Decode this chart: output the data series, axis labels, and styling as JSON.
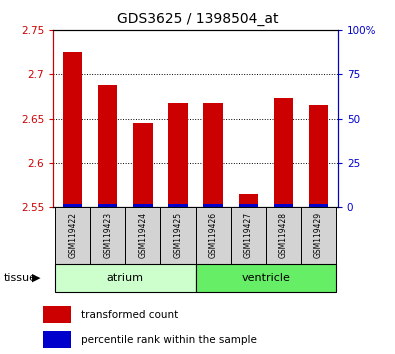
{
  "title": "GDS3625 / 1398504_at",
  "samples": [
    "GSM119422",
    "GSM119423",
    "GSM119424",
    "GSM119425",
    "GSM119426",
    "GSM119427",
    "GSM119428",
    "GSM119429"
  ],
  "transformed_count": [
    2.725,
    2.688,
    2.645,
    2.668,
    2.668,
    2.565,
    2.673,
    2.665
  ],
  "percentile_rank_pct": [
    2.0,
    2.0,
    2.0,
    2.0,
    2.0,
    2.0,
    2.0,
    2.0
  ],
  "baseline": 2.55,
  "ylim": [
    2.55,
    2.75
  ],
  "yticks_left": [
    2.55,
    2.6,
    2.65,
    2.7,
    2.75
  ],
  "yticks_right_vals": [
    0,
    25,
    50,
    75,
    100
  ],
  "yticks_right_labels": [
    "0",
    "25",
    "50",
    "75",
    "100%"
  ],
  "bar_color_red": "#cc0000",
  "bar_color_blue": "#0000cc",
  "bar_width": 0.55,
  "left_axis_color": "#cc0000",
  "right_axis_color": "#0000cc",
  "tissue_label": "tissue",
  "legend_items": [
    {
      "label": "transformed count",
      "color": "#cc0000"
    },
    {
      "label": "percentile rank within the sample",
      "color": "#0000cc"
    }
  ],
  "sample_box_color": "#d3d3d3",
  "atrium_color": "#ccffcc",
  "ventricle_color": "#66ee66",
  "tissue_groups": [
    {
      "name": "atrium",
      "start": 0,
      "end": 4
    },
    {
      "name": "ventricle",
      "start": 4,
      "end": 8
    }
  ]
}
